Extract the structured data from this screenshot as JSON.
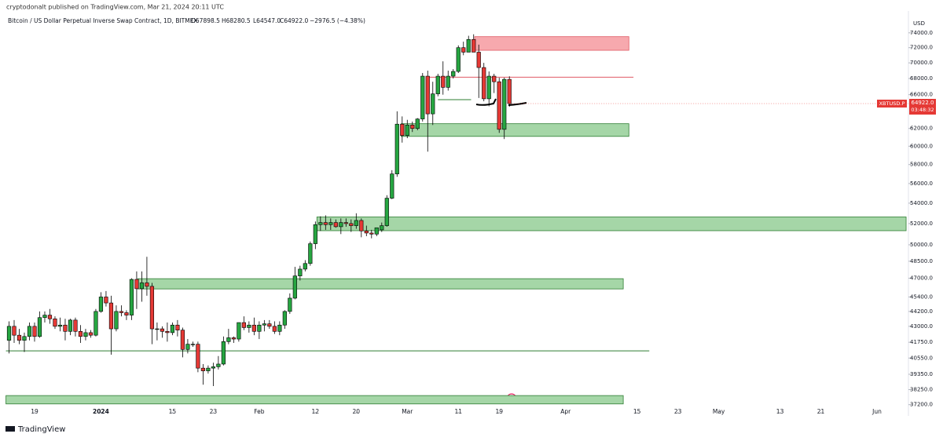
{
  "header": {
    "publisher": "cryptodonalt published on TradingView.com, Mar 21, 2024 20:11 UTC",
    "symbol": "Bitcoin / US Dollar Perpetual Inverse Swap Contract, 1D, BITMEX",
    "open": "O67898.5",
    "high": "H68280.5",
    "low": "L64547.0",
    "close": "C64922.0",
    "change": "−2976.5 (−4.38%)"
  },
  "footer": {
    "brand": "TradingView"
  },
  "chart_data": {
    "type": "candlestick",
    "y_label": "USD",
    "log_scale": true,
    "grid": false,
    "up_color": "#26a641",
    "down_color": "#e53935",
    "xlim": [
      -19,
      158
    ],
    "ylim": [
      36700,
      77500
    ],
    "xticks": [
      {
        "value": -13,
        "label": "19"
      },
      {
        "value": 0,
        "label": "2024"
      },
      {
        "value": 14,
        "label": "15"
      },
      {
        "value": 22,
        "label": "23"
      },
      {
        "value": 31,
        "label": "Feb"
      },
      {
        "value": 42,
        "label": "12"
      },
      {
        "value": 50,
        "label": "20"
      },
      {
        "value": 60,
        "label": "Mar"
      },
      {
        "value": 70,
        "label": "11"
      },
      {
        "value": 78,
        "label": "19"
      },
      {
        "value": 91,
        "label": "Apr"
      },
      {
        "value": 105,
        "label": "15"
      },
      {
        "value": 113,
        "label": "23"
      },
      {
        "value": 121,
        "label": "May"
      },
      {
        "value": 133,
        "label": "13"
      },
      {
        "value": 141,
        "label": "21"
      },
      {
        "value": 152,
        "label": "Jun"
      }
    ],
    "yticks": [
      {
        "value": 37200,
        "label": "37200.0"
      },
      {
        "value": 38250,
        "label": "38250.0"
      },
      {
        "value": 39350,
        "label": "39350.0"
      },
      {
        "value": 40550,
        "label": "40550.0"
      },
      {
        "value": 41750,
        "label": "41750.0"
      },
      {
        "value": 43000,
        "label": "43000.0"
      },
      {
        "value": 44200,
        "label": "44200.0"
      },
      {
        "value": 45400,
        "label": "45400.0"
      },
      {
        "value": 47000,
        "label": "47000.0"
      },
      {
        "value": 48500,
        "label": "48500.0"
      },
      {
        "value": 50000,
        "label": "50000.0"
      },
      {
        "value": 52000,
        "label": "52000.0"
      },
      {
        "value": 54000,
        "label": "54000.0"
      },
      {
        "value": 56000,
        "label": "56000.0"
      },
      {
        "value": 58000,
        "label": "58000.0"
      },
      {
        "value": 60000,
        "label": "60000.0"
      },
      {
        "value": 62000,
        "label": "62000.0"
      },
      {
        "value": 66000,
        "label": "66000.0"
      },
      {
        "value": 68000,
        "label": "68000.0"
      },
      {
        "value": 70000,
        "label": "70000.0"
      },
      {
        "value": 72000,
        "label": "72000.0"
      },
      {
        "value": 74000,
        "label": "74000.0"
      }
    ],
    "last_price": {
      "value": 64922,
      "symbol": "XBTUSD.P",
      "label": "64922.0",
      "countdown": "03:48:32"
    },
    "x": [
      -18,
      -17,
      -16,
      -15,
      -14,
      -13,
      -12,
      -11,
      -10,
      -9,
      -8,
      -7,
      -6,
      -5,
      -4,
      -3,
      -2,
      -1,
      0,
      1,
      2,
      3,
      4,
      5,
      6,
      7,
      8,
      9,
      10,
      11,
      12,
      13,
      14,
      15,
      16,
      17,
      18,
      19,
      20,
      21,
      22,
      23,
      24,
      25,
      26,
      27,
      28,
      29,
      30,
      31,
      32,
      33,
      34,
      35,
      36,
      37,
      38,
      39,
      40,
      41,
      42,
      43,
      44,
      45,
      46,
      47,
      48,
      49,
      50,
      51,
      52,
      53,
      54,
      55,
      56,
      57,
      58,
      59,
      60,
      61,
      62,
      63,
      64,
      65,
      66,
      67,
      68,
      69,
      70,
      71,
      72,
      73,
      74,
      75,
      76,
      77,
      78,
      79,
      80
    ],
    "ohlc": [
      [
        41900,
        43400,
        40900,
        43000
      ],
      [
        43000,
        43500,
        41700,
        42300
      ],
      [
        42300,
        42800,
        41600,
        41900
      ],
      [
        41900,
        42500,
        41000,
        42200
      ],
      [
        42200,
        43300,
        41900,
        43000
      ],
      [
        43000,
        43300,
        41800,
        42200
      ],
      [
        42200,
        44200,
        42100,
        43700
      ],
      [
        43700,
        44200,
        43300,
        43900
      ],
      [
        43900,
        44400,
        43200,
        43600
      ],
      [
        43600,
        43800,
        42800,
        43000
      ],
      [
        43000,
        43700,
        42600,
        43100
      ],
      [
        43100,
        43600,
        41900,
        42600
      ],
      [
        42600,
        43600,
        42300,
        43500
      ],
      [
        43500,
        43700,
        42200,
        42600
      ],
      [
        42600,
        43100,
        41700,
        42200
      ],
      [
        42200,
        42800,
        41900,
        42500
      ],
      [
        42500,
        42700,
        42100,
        42300
      ],
      [
        42300,
        44400,
        42200,
        44200
      ],
      [
        44200,
        45800,
        44100,
        45400
      ],
      [
        45400,
        45900,
        44600,
        44900
      ],
      [
        44900,
        45500,
        40800,
        42800
      ],
      [
        42800,
        44700,
        42600,
        44200
      ],
      [
        44200,
        44700,
        43800,
        44100
      ],
      [
        44100,
        44300,
        43500,
        43900
      ],
      [
        43900,
        47000,
        43500,
        46900
      ],
      [
        46900,
        47600,
        44400,
        46100
      ],
      [
        46100,
        47600,
        45000,
        46600
      ],
      [
        46600,
        48900,
        45500,
        46300
      ],
      [
        46300,
        46600,
        41600,
        42800
      ],
      [
        42800,
        43300,
        41900,
        42800
      ],
      [
        42800,
        43000,
        42100,
        42600
      ],
      [
        42600,
        43300,
        41800,
        42500
      ],
      [
        42500,
        43300,
        42300,
        43100
      ],
      [
        43100,
        43500,
        42200,
        42700
      ],
      [
        42700,
        42900,
        40600,
        41200
      ],
      [
        41200,
        42000,
        40900,
        41600
      ],
      [
        41600,
        41800,
        41400,
        41600
      ],
      [
        41600,
        41800,
        39500,
        39800
      ],
      [
        39800,
        40100,
        38600,
        39600
      ],
      [
        39600,
        40000,
        39400,
        39800
      ],
      [
        39800,
        40200,
        38500,
        39900
      ],
      [
        39900,
        40700,
        39700,
        40100
      ],
      [
        40100,
        42200,
        40000,
        41800
      ],
      [
        41800,
        42800,
        41600,
        42100
      ],
      [
        42100,
        42200,
        41700,
        42000
      ],
      [
        42000,
        43300,
        41800,
        43300
      ],
      [
        43300,
        43800,
        42700,
        42900
      ],
      [
        42900,
        43400,
        42500,
        43100
      ],
      [
        43100,
        43700,
        42300,
        42600
      ],
      [
        42600,
        43400,
        42000,
        43100
      ],
      [
        43100,
        43500,
        42600,
        43200
      ],
      [
        43200,
        43500,
        42800,
        43000
      ],
      [
        43000,
        43400,
        42400,
        42600
      ],
      [
        42600,
        43400,
        42300,
        43100
      ],
      [
        43100,
        44300,
        42800,
        44200
      ],
      [
        44200,
        45700,
        44000,
        45300
      ],
      [
        45300,
        48000,
        45200,
        47200
      ],
      [
        47200,
        48100,
        46800,
        47800
      ],
      [
        47800,
        48600,
        47600,
        48300
      ],
      [
        48300,
        50300,
        48100,
        50100
      ],
      [
        50100,
        52200,
        49600,
        51900
      ],
      [
        51900,
        52700,
        51300,
        52100
      ],
      [
        52100,
        52800,
        51400,
        51900
      ],
      [
        51900,
        52500,
        51400,
        52100
      ],
      [
        52100,
        52400,
        51600,
        51700
      ],
      [
        51700,
        52500,
        51000,
        52100
      ],
      [
        52100,
        52500,
        51700,
        52000
      ],
      [
        52000,
        52400,
        51200,
        51800
      ],
      [
        51800,
        53000,
        51500,
        52300
      ],
      [
        52300,
        52500,
        50700,
        51300
      ],
      [
        51300,
        51800,
        50800,
        51100
      ],
      [
        51100,
        51400,
        50600,
        51000
      ],
      [
        51000,
        51500,
        50800,
        51600
      ],
      [
        51400,
        52100,
        51200,
        51800
      ],
      [
        51800,
        54800,
        51700,
        54500
      ],
      [
        54500,
        57400,
        54400,
        57000
      ],
      [
        57000,
        64000,
        56700,
        62500
      ],
      [
        62500,
        63400,
        60400,
        61200
      ],
      [
        61200,
        63000,
        60900,
        62400
      ],
      [
        62400,
        62800,
        61600,
        62000
      ],
      [
        62000,
        63200,
        61800,
        63100
      ],
      [
        63100,
        68700,
        62800,
        68300
      ],
      [
        68300,
        69000,
        59400,
        63700
      ],
      [
        63700,
        67600,
        62400,
        66100
      ],
      [
        66100,
        68600,
        65800,
        68300
      ],
      [
        68300,
        70200,
        66000,
        66900
      ],
      [
        66900,
        69000,
        66500,
        68300
      ],
      [
        68300,
        69200,
        68000,
        68900
      ],
      [
        68900,
        72300,
        68700,
        72000
      ],
      [
        72000,
        72800,
        71000,
        71400
      ],
      [
        71400,
        73600,
        71400,
        73100
      ],
      [
        73100,
        73800,
        71400,
        71400
      ],
      [
        71400,
        72400,
        65600,
        69400
      ],
      [
        69400,
        70000,
        65200,
        65500
      ],
      [
        65500,
        68900,
        64600,
        68300
      ],
      [
        68300,
        68600,
        66200,
        67600
      ],
      [
        67600,
        68100,
        61500,
        61900
      ],
      [
        61900,
        68100,
        60800,
        67900
      ],
      [
        67898.5,
        68280.5,
        64547,
        64922
      ]
    ],
    "zones": [
      {
        "x": [
          73.2,
          103.4
        ],
        "y": [
          71650,
          73480
        ],
        "color": "#f7a9ae",
        "edge": "#e05a64"
      },
      {
        "x": [
          58.8,
          103.4
        ],
        "y": [
          61100,
          62550
        ],
        "color": "#a5d6a7",
        "edge": "#2e7d32"
      },
      {
        "x": [
          42.3,
          157.7
        ],
        "y": [
          51320,
          52640
        ],
        "color": "#a5d6a7",
        "edge": "#2e7d32"
      },
      {
        "x": [
          7.2,
          102.3
        ],
        "y": [
          46080,
          46960
        ],
        "color": "#a5d6a7",
        "edge": "#2e7d32"
      },
      {
        "x": [
          -18.6,
          102.3
        ],
        "y": [
          37250,
          37830
        ],
        "color": "#a5d6a7",
        "edge": "#2e7d32"
      }
    ],
    "levels": [
      {
        "x": [
          64.2,
          104.3
        ],
        "y": 68170,
        "color": "#e05a64"
      },
      {
        "x": [
          -18.6,
          107.4
        ],
        "y": 41090,
        "color": "#2e7d32"
      },
      {
        "x": [
          66,
          72.5
        ],
        "y": 65400,
        "color": "#2e7d32"
      }
    ]
  }
}
